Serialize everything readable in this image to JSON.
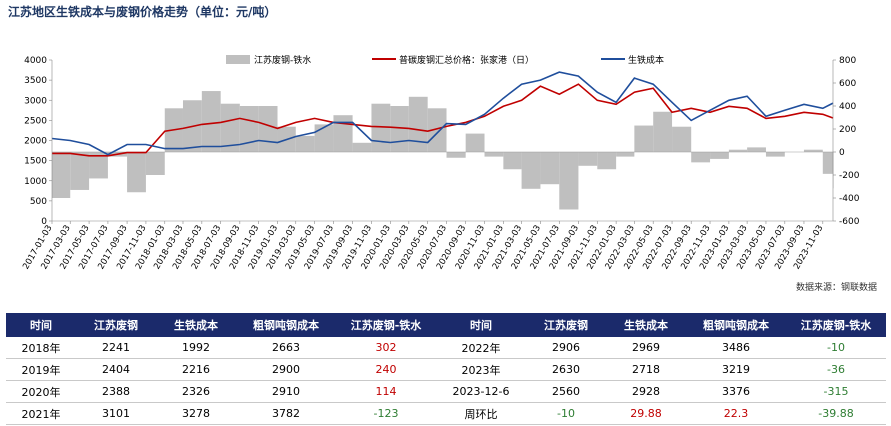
{
  "title": "江苏地区生铁成本与废钢价格走势（单位：元/吨）",
  "source": "数据来源：钢联数据",
  "colors": {
    "scrap_price": "#c00000",
    "pig_iron": "#1f4e9c",
    "spread": "#bfbfbf",
    "header_bg": "#1b2a6b",
    "up": "#c00000",
    "down": "#2e7d32"
  },
  "chart_data": {
    "type": "line",
    "title": "江苏地区生铁成本与废钢价格走势（单位：元/吨）",
    "x_ticks": [
      "2017-01-03",
      "2017-03-03",
      "2017-05-03",
      "2017-07-03",
      "2017-09-03",
      "2017-11-03",
      "2018-01-03",
      "2018-03-03",
      "2018-05-03",
      "2018-07-03",
      "2018-09-03",
      "2018-11-03",
      "2019-01-03",
      "2019-03-03",
      "2019-05-03",
      "2019-07-03",
      "2019-09-03",
      "2019-11-03",
      "2020-01-03",
      "2020-03-03",
      "2020-05-03",
      "2020-07-03",
      "2020-09-03",
      "2020-11-03",
      "2021-01-03",
      "2021-03-03",
      "2021-05-03",
      "2021-07-03",
      "2021-09-03",
      "2021-11-03",
      "2022-01-03",
      "2022-03-03",
      "2022-05-03",
      "2022-07-03",
      "2022-09-03",
      "2022-11-03",
      "2023-01-03",
      "2023-03-03",
      "2023-05-03",
      "2023-07-03",
      "2023-09-03",
      "2023-11-03"
    ],
    "y_left": {
      "min": 0,
      "max": 4000,
      "ticks": [
        0,
        500,
        1000,
        1500,
        2000,
        2500,
        3000,
        3500,
        4000
      ]
    },
    "y_right": {
      "min": -600,
      "max": 800,
      "ticks": [
        -600,
        -400,
        -200,
        0,
        200,
        400,
        600,
        800
      ]
    },
    "legend_position": "top",
    "series": [
      {
        "name": "江苏废钢-铁水",
        "type": "area",
        "axis": "right",
        "x": [
          "2017-01-03",
          "2017-03-03",
          "2017-05-03",
          "2017-07-03",
          "2017-09-03",
          "2017-11-03",
          "2018-01-03",
          "2018-03-03",
          "2018-05-03",
          "2018-07-03",
          "2018-09-03",
          "2018-11-03",
          "2019-01-03",
          "2019-03-03",
          "2019-05-03",
          "2019-07-03",
          "2019-09-03",
          "2019-11-03",
          "2020-01-03",
          "2020-03-03",
          "2020-05-03",
          "2020-07-03",
          "2020-09-03",
          "2020-11-03",
          "2021-01-03",
          "2021-03-03",
          "2021-05-03",
          "2021-07-03",
          "2021-09-03",
          "2021-11-03",
          "2022-01-03",
          "2022-03-03",
          "2022-05-03",
          "2022-07-03",
          "2022-09-03",
          "2022-11-03",
          "2023-01-03",
          "2023-03-03",
          "2023-05-03",
          "2023-07-03",
          "2023-09-03",
          "2023-11-03",
          "2023-12-06"
        ],
        "values": [
          -400,
          -330,
          -230,
          -40,
          -350,
          -200,
          380,
          450,
          530,
          420,
          400,
          400,
          220,
          140,
          240,
          320,
          80,
          420,
          400,
          480,
          380,
          -50,
          160,
          -40,
          -150,
          -320,
          -280,
          -500,
          -120,
          -150,
          -40,
          230,
          350,
          220,
          -90,
          -60,
          20,
          40,
          -40,
          0,
          20,
          -190,
          -315
        ]
      },
      {
        "name": "普碳废钢汇总价格：张家港（日）",
        "type": "line",
        "axis": "left",
        "x": [
          "2017-01-03",
          "2017-03-03",
          "2017-05-03",
          "2017-07-03",
          "2017-09-03",
          "2017-11-03",
          "2018-01-03",
          "2018-03-03",
          "2018-05-03",
          "2018-07-03",
          "2018-09-03",
          "2018-11-03",
          "2019-01-03",
          "2019-03-03",
          "2019-05-03",
          "2019-07-03",
          "2019-09-03",
          "2019-11-03",
          "2020-01-03",
          "2020-03-03",
          "2020-05-03",
          "2020-07-03",
          "2020-09-03",
          "2020-11-03",
          "2021-01-03",
          "2021-03-03",
          "2021-05-03",
          "2021-07-03",
          "2021-09-03",
          "2021-11-03",
          "2022-01-03",
          "2022-03-03",
          "2022-05-03",
          "2022-07-03",
          "2022-09-03",
          "2022-11-03",
          "2023-01-03",
          "2023-03-03",
          "2023-05-03",
          "2023-07-03",
          "2023-09-03",
          "2023-11-03",
          "2023-12-06"
        ],
        "values": [
          1680,
          1680,
          1620,
          1620,
          1700,
          1700,
          2230,
          2300,
          2400,
          2450,
          2550,
          2450,
          2300,
          2450,
          2550,
          2450,
          2400,
          2350,
          2330,
          2300,
          2230,
          2350,
          2450,
          2600,
          2850,
          3000,
          3350,
          3150,
          3400,
          3000,
          2900,
          3200,
          3300,
          2700,
          2800,
          2700,
          2850,
          2800,
          2550,
          2600,
          2700,
          2650,
          2560
        ]
      },
      {
        "name": "生铁成本",
        "type": "line",
        "axis": "left",
        "x": [
          "2017-01-03",
          "2017-03-03",
          "2017-05-03",
          "2017-07-03",
          "2017-09-03",
          "2017-11-03",
          "2018-01-03",
          "2018-03-03",
          "2018-05-03",
          "2018-07-03",
          "2018-09-03",
          "2018-11-03",
          "2019-01-03",
          "2019-03-03",
          "2019-05-03",
          "2019-07-03",
          "2019-09-03",
          "2019-11-03",
          "2020-01-03",
          "2020-03-03",
          "2020-05-03",
          "2020-07-03",
          "2020-09-03",
          "2020-11-03",
          "2021-01-03",
          "2021-03-03",
          "2021-05-03",
          "2021-07-03",
          "2021-09-03",
          "2021-11-03",
          "2022-01-03",
          "2022-03-03",
          "2022-05-03",
          "2022-07-03",
          "2022-09-03",
          "2022-11-03",
          "2023-01-03",
          "2023-03-03",
          "2023-05-03",
          "2023-07-03",
          "2023-09-03",
          "2023-11-03",
          "2023-12-06"
        ],
        "values": [
          2050,
          2000,
          1900,
          1650,
          1900,
          1900,
          1800,
          1800,
          1850,
          1850,
          1900,
          2000,
          1950,
          2100,
          2200,
          2450,
          2450,
          2000,
          1950,
          2000,
          1950,
          2420,
          2400,
          2650,
          3050,
          3400,
          3500,
          3700,
          3600,
          3200,
          2950,
          3550,
          3400,
          2950,
          2500,
          2750,
          3000,
          3100,
          2600,
          2750,
          2900,
          2800,
          2928
        ]
      }
    ]
  },
  "table": {
    "headers": [
      "时间",
      "江苏废钢",
      "生铁成本",
      "粗钢吨钢成本",
      "江苏废钢-铁水",
      "时间",
      "江苏废钢",
      "生铁成本",
      "粗钢吨钢成本",
      "江苏废钢-铁水"
    ],
    "rows": [
      [
        {
          "t": "2018年"
        },
        {
          "t": "2241"
        },
        {
          "t": "1992"
        },
        {
          "t": "2663"
        },
        {
          "t": "302",
          "c": "red"
        },
        {
          "t": "2022年"
        },
        {
          "t": "2906"
        },
        {
          "t": "2969"
        },
        {
          "t": "3486"
        },
        {
          "t": "-10",
          "c": "green"
        }
      ],
      [
        {
          "t": "2019年"
        },
        {
          "t": "2404"
        },
        {
          "t": "2216"
        },
        {
          "t": "2900"
        },
        {
          "t": "240",
          "c": "red"
        },
        {
          "t": "2023年"
        },
        {
          "t": "2630"
        },
        {
          "t": "2718"
        },
        {
          "t": "3219"
        },
        {
          "t": "-36",
          "c": "green"
        }
      ],
      [
        {
          "t": "2020年"
        },
        {
          "t": "2388"
        },
        {
          "t": "2326"
        },
        {
          "t": "2910"
        },
        {
          "t": "114",
          "c": "red"
        },
        {
          "t": "2023-12-6"
        },
        {
          "t": "2560"
        },
        {
          "t": "2928"
        },
        {
          "t": "3376"
        },
        {
          "t": "-315",
          "c": "green"
        }
      ],
      [
        {
          "t": "2021年"
        },
        {
          "t": "3101"
        },
        {
          "t": "3278"
        },
        {
          "t": "3782"
        },
        {
          "t": "-123",
          "c": "green"
        },
        {
          "t": "周环比"
        },
        {
          "t": "-10",
          "c": "green"
        },
        {
          "t": "29.88",
          "c": "red"
        },
        {
          "t": "22.3",
          "c": "red"
        },
        {
          "t": "-39.88",
          "c": "green"
        }
      ]
    ]
  }
}
